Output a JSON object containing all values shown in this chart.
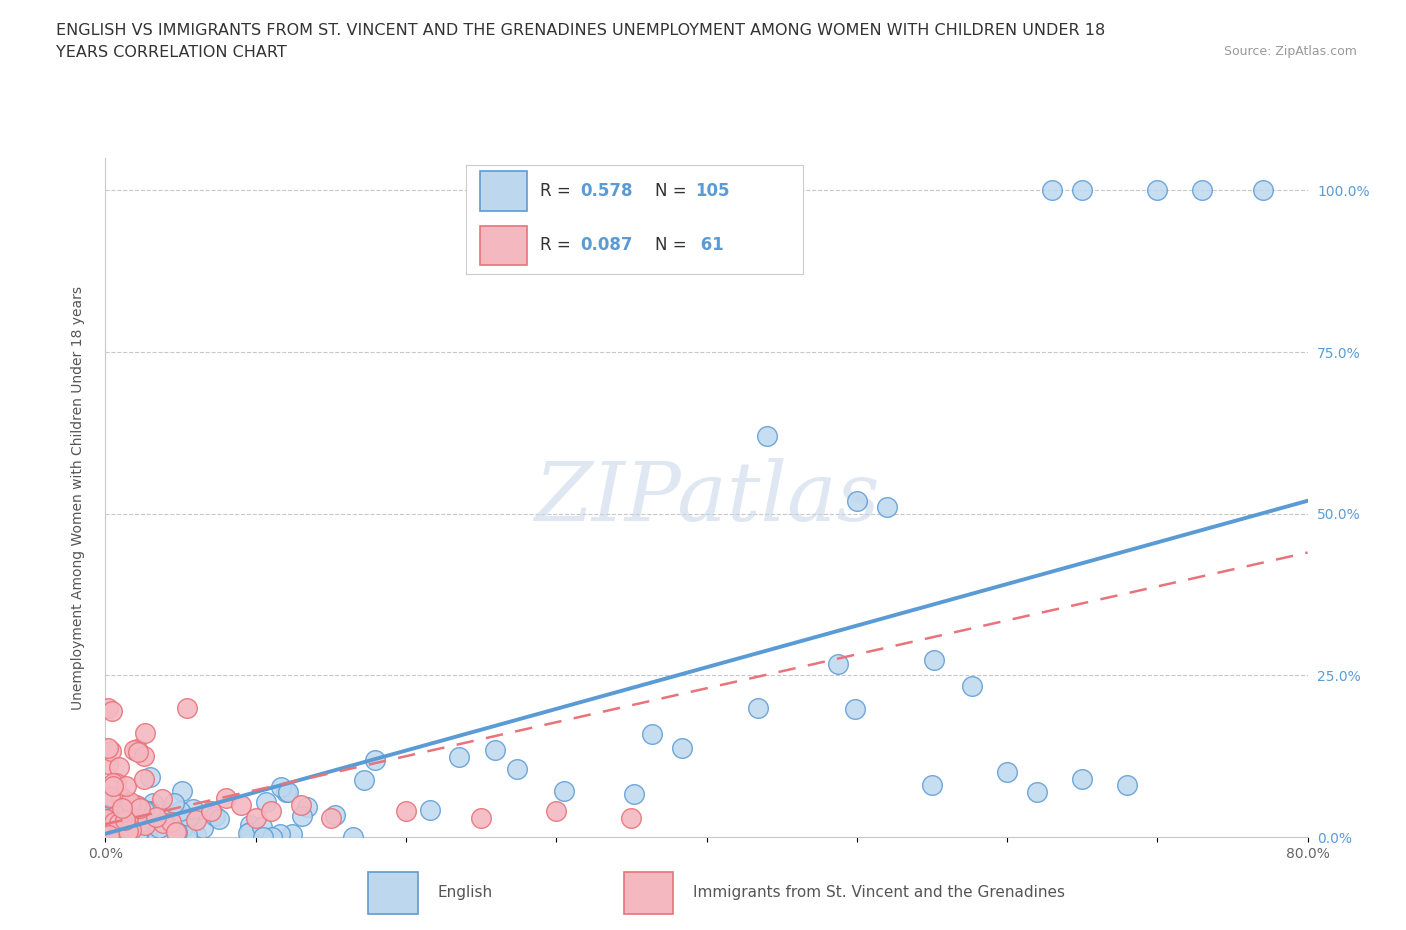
{
  "title_line1": "ENGLISH VS IMMIGRANTS FROM ST. VINCENT AND THE GRENADINES UNEMPLOYMENT AMONG WOMEN WITH CHILDREN UNDER 18",
  "title_line2": "YEARS CORRELATION CHART",
  "source_text": "Source: ZipAtlas.com",
  "ylabel": "Unemployment Among Women with Children Under 18 years",
  "xmin": 0.0,
  "xmax": 0.8,
  "ymin": 0.0,
  "ymax": 1.05,
  "watermark_text": "ZIPatlas",
  "english_color": "#5b9bd5",
  "english_fill": "#bdd7ee",
  "immigrant_color": "#e8737a",
  "immigrant_fill": "#f4b8c1",
  "grid_color": "#c8c8c8",
  "background_color": "#ffffff",
  "title_fontsize": 11.5,
  "axis_label_fontsize": 10,
  "tick_fontsize": 10,
  "source_fontsize": 9,
  "legend_r1": "R = 0.578",
  "legend_n1": "N = 105",
  "legend_r2": "R = 0.087",
  "legend_n2": "N =  61",
  "legend_label1": "English",
  "legend_label2": "Immigrants from St. Vincent and the Grenadines",
  "right_tick_color": "#5b9bd5"
}
